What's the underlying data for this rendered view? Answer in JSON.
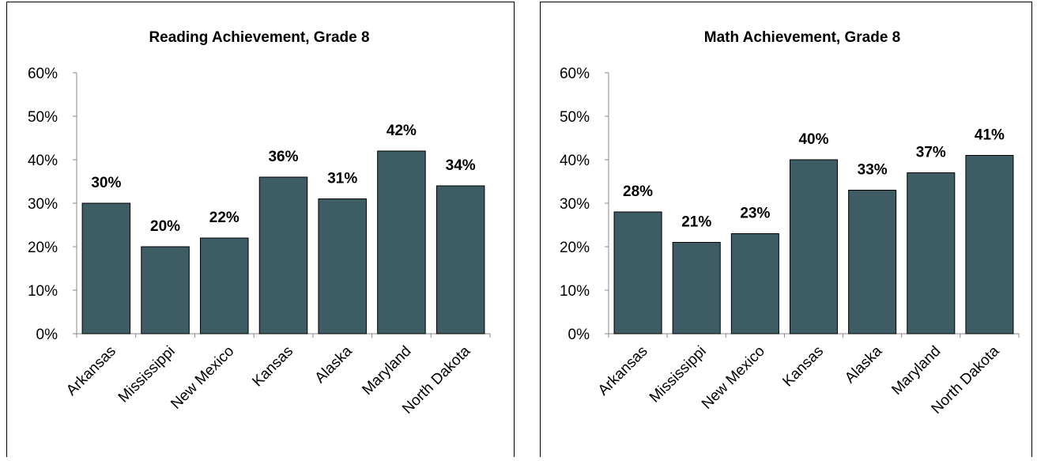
{
  "chart_data": [
    {
      "type": "bar",
      "title": "Reading Achievement, Grade 8",
      "categories": [
        "Arkansas",
        "Mississippi",
        "New Mexico",
        "Kansas",
        "Alaska",
        "Maryland",
        "North Dakota"
      ],
      "values": [
        30,
        20,
        22,
        36,
        31,
        42,
        34
      ],
      "value_labels": [
        "30%",
        "20%",
        "22%",
        "36%",
        "31%",
        "42%",
        "34%"
      ],
      "color": "#3d5c63",
      "ylim": [
        0,
        60
      ],
      "yticks": [
        {
          "value": 0,
          "label": "0%"
        },
        {
          "value": 10,
          "label": "10%"
        },
        {
          "value": 20,
          "label": "20%"
        },
        {
          "value": 30,
          "label": "30%"
        },
        {
          "value": 40,
          "label": "40%"
        },
        {
          "value": 50,
          "label": "50%"
        },
        {
          "value": 60,
          "label": "60%"
        }
      ]
    },
    {
      "type": "bar",
      "title": "Math Achievement, Grade 8",
      "categories": [
        "Arkansas",
        "Mississippi",
        "New Mexico",
        "Kansas",
        "Alaska",
        "Maryland",
        "North Dakota"
      ],
      "values": [
        28,
        21,
        23,
        40,
        33,
        37,
        41
      ],
      "value_labels": [
        "28%",
        "21%",
        "23%",
        "40%",
        "33%",
        "37%",
        "41%"
      ],
      "color": "#3d5c63",
      "ylim": [
        0,
        60
      ],
      "yticks": [
        {
          "value": 0,
          "label": "0%"
        },
        {
          "value": 10,
          "label": "10%"
        },
        {
          "value": 20,
          "label": "20%"
        },
        {
          "value": 30,
          "label": "30%"
        },
        {
          "value": 40,
          "label": "40%"
        },
        {
          "value": 50,
          "label": "50%"
        },
        {
          "value": 60,
          "label": "60%"
        }
      ]
    }
  ]
}
